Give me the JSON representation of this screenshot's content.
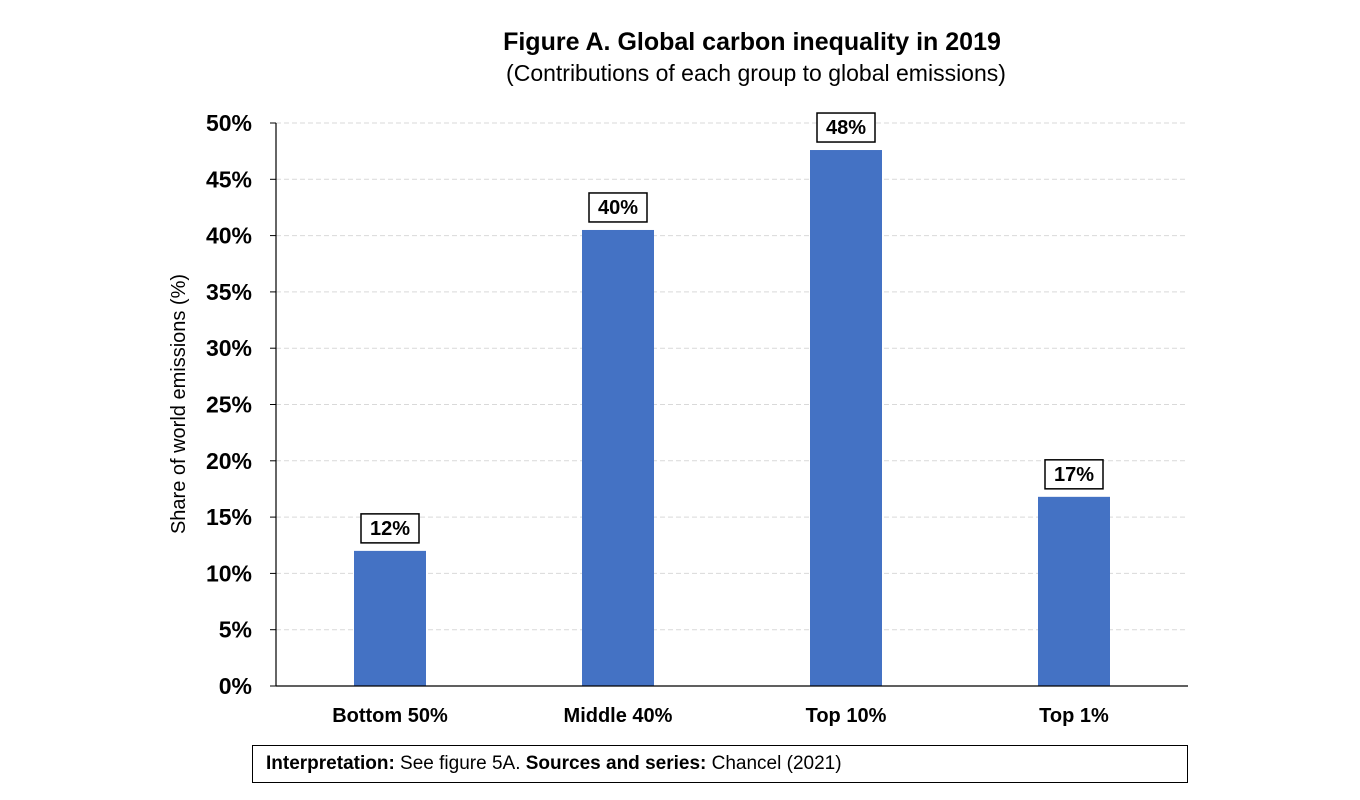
{
  "chart_data": {
    "type": "bar",
    "title": "Figure A. Global carbon inequality in 2019",
    "subtitle": "(Contributions of each group to global emissions)",
    "xlabel": "",
    "ylabel": "Share of world emissions (%)",
    "categories": [
      "Bottom 50%",
      "Middle 40%",
      "Top 10%",
      "Top 1%"
    ],
    "values": [
      12,
      40.5,
      47.6,
      16.8
    ],
    "data_labels": [
      "12%",
      "40%",
      "48%",
      "17%"
    ],
    "ylim": [
      0,
      50
    ],
    "yticks": [
      0,
      5,
      10,
      15,
      20,
      25,
      30,
      35,
      40,
      45,
      50
    ],
    "ytick_labels": [
      "0%",
      "5%",
      "10%",
      "15%",
      "20%",
      "25%",
      "30%",
      "35%",
      "40%",
      "45%",
      "50%"
    ],
    "grid": true,
    "bar_color": "#4472C4",
    "grid_color": "#D9D9D9"
  },
  "note": {
    "interpretation_label": "Interpretation:",
    "interpretation_text": " See figure 5A. ",
    "sources_label": "Sources and series:",
    "sources_text": " Chancel (2021)"
  }
}
